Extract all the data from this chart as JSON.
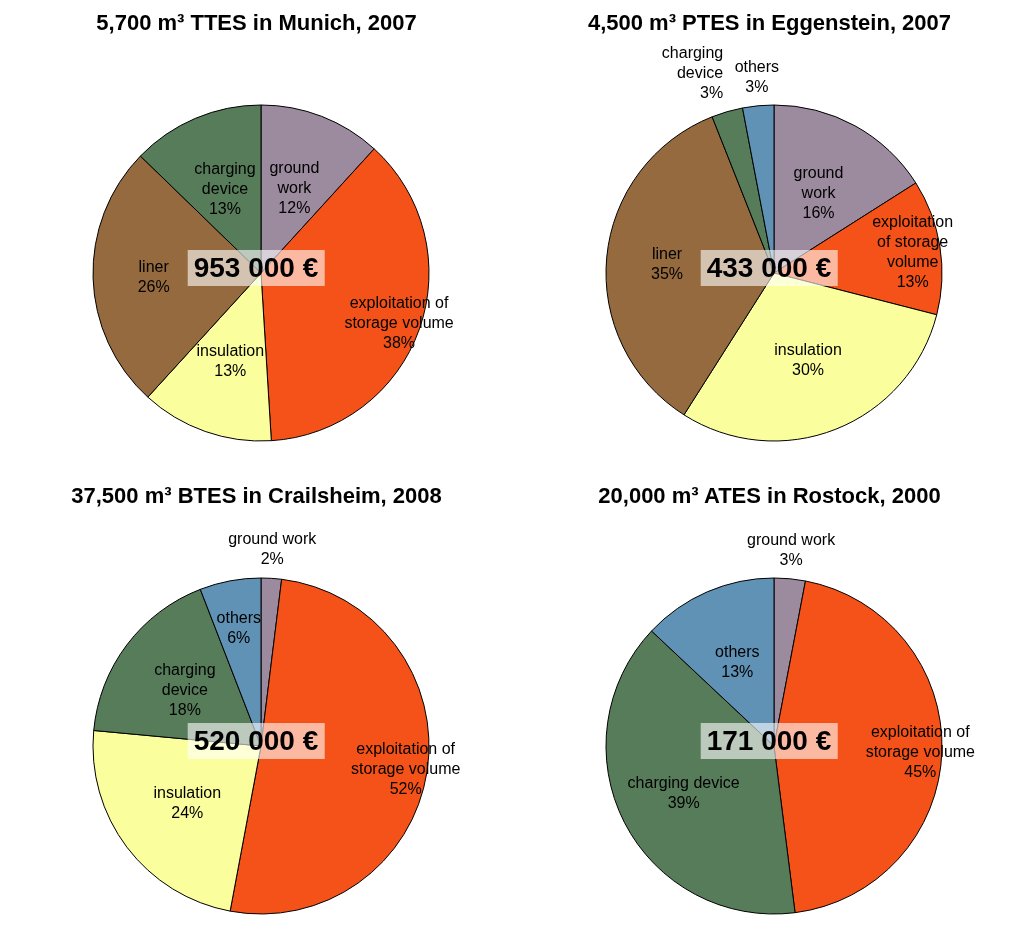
{
  "chart_data": [
    {
      "type": "pie",
      "title": "5,700 m³ TTES in Munich, 2007",
      "categories": [
        "ground work",
        "exploitation of storage volume",
        "insulation",
        "liner",
        "charging device"
      ],
      "values": [
        12,
        38,
        13,
        26,
        13
      ],
      "value_labels": [
        "12%",
        "38%",
        "13%",
        "26%",
        "13%"
      ],
      "colors": [
        "#9c8a9e",
        "#f45218",
        "#fafe9c",
        "#956a3e",
        "#567c5a"
      ],
      "annotations": [
        "953 000 €"
      ]
    },
    {
      "type": "pie",
      "title": "4,500 m³ PTES in Eggenstein, 2007",
      "categories": [
        "ground work",
        "exploitation of storage volume",
        "insulation",
        "liner",
        "charging device",
        "others"
      ],
      "values": [
        16,
        13,
        30,
        35,
        3,
        3
      ],
      "value_labels": [
        "16%",
        "13%",
        "30%",
        "35%",
        "3%",
        "3%"
      ],
      "colors": [
        "#9c8a9e",
        "#f45218",
        "#fafe9c",
        "#956a3e",
        "#567c5a",
        "#6092b6"
      ],
      "annotations": [
        "433 000 €"
      ]
    },
    {
      "type": "pie",
      "title": "37,500 m³ BTES in Crailsheim, 2008",
      "categories": [
        "ground work",
        "exploitation of storage volume",
        "insulation",
        "charging device",
        "others"
      ],
      "values": [
        2,
        52,
        24,
        18,
        6
      ],
      "value_labels": [
        "2%",
        "52%",
        "24%",
        "18%",
        "6%"
      ],
      "colors": [
        "#9c8a9e",
        "#f45218",
        "#fafe9c",
        "#567c5a",
        "#6092b6"
      ],
      "annotations": [
        "520 000 €"
      ]
    },
    {
      "type": "pie",
      "title": "20,000 m³ ATES in Rostock, 2000",
      "categories": [
        "ground work",
        "exploitation of storage volume",
        "charging device",
        "others"
      ],
      "values": [
        3,
        45,
        39,
        13
      ],
      "value_labels": [
        "3%",
        "45%",
        "39%",
        "13%"
      ],
      "colors": [
        "#9c8a9e",
        "#f45218",
        "#567c5a",
        "#6092b6"
      ],
      "annotations": [
        "171 000 €"
      ]
    }
  ]
}
